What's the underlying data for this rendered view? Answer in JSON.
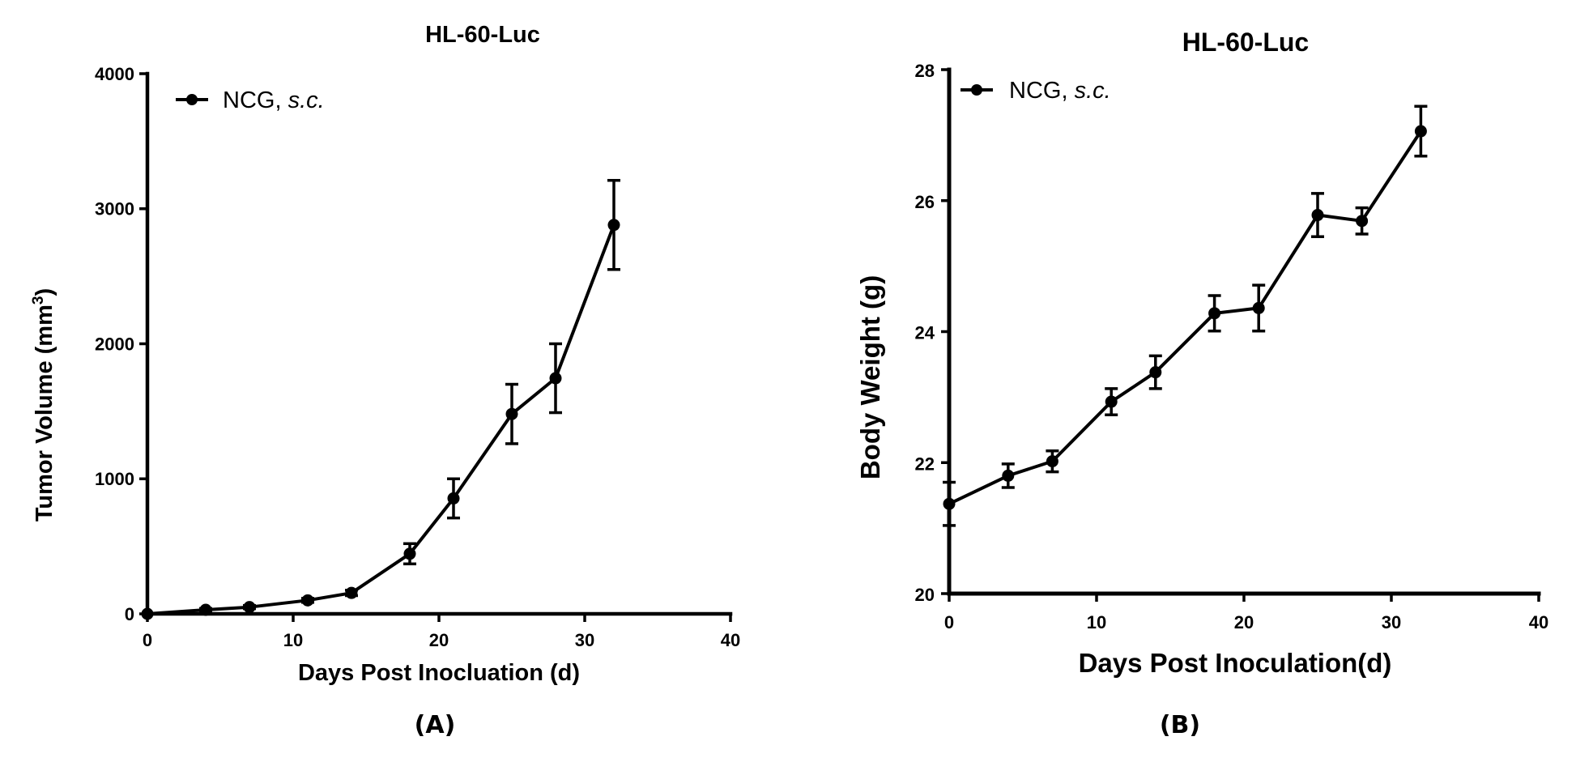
{
  "chart_data": [
    {
      "panel": "(A)",
      "type": "line",
      "title": "HL-60-Luc",
      "xlabel": "Days Post Inocluation (d)",
      "ylabel": "Tumor Volume (mm",
      "ylabel_sup": "3",
      "ylabel_close": ")",
      "xlim": [
        0,
        40
      ],
      "ylim": [
        0,
        4000
      ],
      "xticks": [
        "0",
        "10",
        "20",
        "30",
        "40"
      ],
      "yticks": [
        "0",
        "1000",
        "2000",
        "3000",
        "4000"
      ],
      "legend": {
        "label": "NCG, ",
        "label_italic": "s.c.",
        "position": "top-left"
      },
      "series": [
        {
          "name": "NCG, s.c.",
          "x": [
            0,
            4,
            7,
            11,
            14,
            18,
            21,
            25,
            28,
            32
          ],
          "y": [
            0,
            30,
            50,
            100,
            155,
            445,
            855,
            1480,
            1745,
            2880
          ],
          "err": [
            0,
            10,
            12,
            15,
            20,
            75,
            145,
            220,
            255,
            330
          ]
        }
      ]
    },
    {
      "panel": "(B)",
      "type": "line",
      "title": "HL-60-Luc",
      "xlabel": "Days Post Inoculation(d)",
      "ylabel": "Body Weight (g)",
      "xlim": [
        0,
        40
      ],
      "ylim": [
        20,
        28
      ],
      "xticks": [
        "0",
        "10",
        "20",
        "30",
        "40"
      ],
      "yticks": [
        "20",
        "22",
        "24",
        "26",
        "28"
      ],
      "legend": {
        "label": "NCG, ",
        "label_italic": "s.c.",
        "position": "top-left"
      },
      "series": [
        {
          "name": "NCG, s.c.",
          "x": [
            0,
            4,
            7,
            11,
            14,
            18,
            21,
            25,
            28,
            32
          ],
          "y": [
            21.37,
            21.8,
            22.02,
            22.93,
            23.38,
            24.28,
            24.36,
            25.78,
            25.69,
            27.06
          ],
          "err": [
            0.33,
            0.18,
            0.16,
            0.2,
            0.25,
            0.27,
            0.35,
            0.33,
            0.2,
            0.38
          ]
        }
      ]
    }
  ]
}
